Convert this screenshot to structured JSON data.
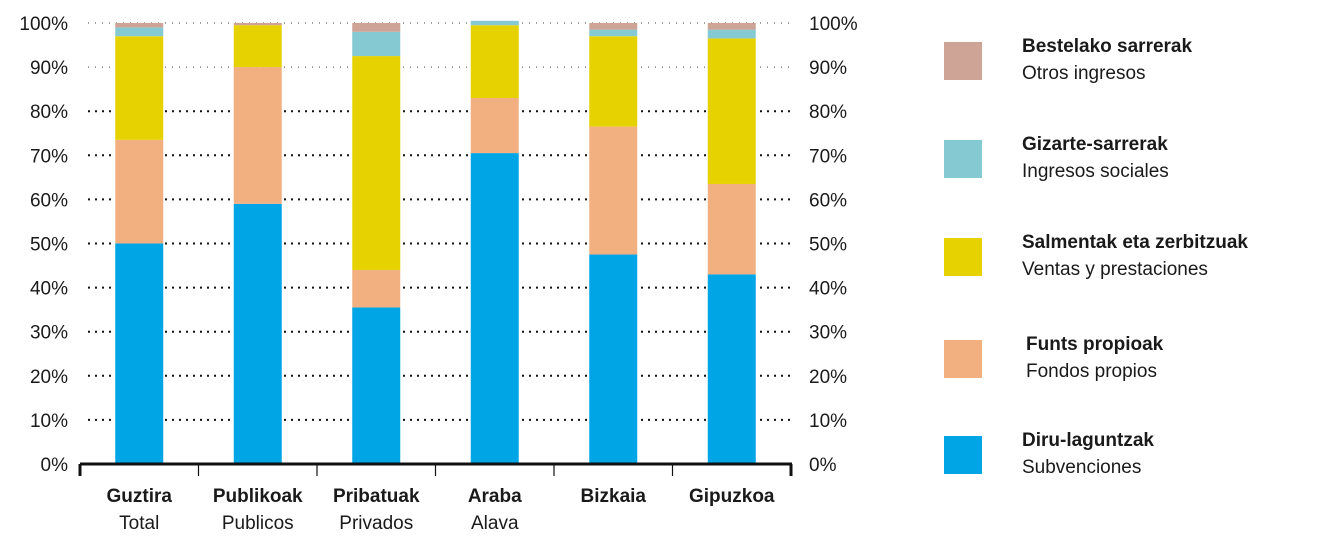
{
  "chart_data": {
    "type": "bar",
    "stacked": true,
    "ylim": [
      0,
      100
    ],
    "y_ticks": [
      "0%",
      "10%",
      "20%",
      "30%",
      "40%",
      "50%",
      "60%",
      "70%",
      "80%",
      "90%",
      "100%"
    ],
    "y_axis_both_sides": true,
    "grid": "dotted horizontal",
    "legend_position": "right",
    "categories": [
      {
        "label": "Guztira",
        "sublabel": "Total"
      },
      {
        "label": "Publikoak",
        "sublabel": "Publicos"
      },
      {
        "label": "Pribatuak",
        "sublabel": "Privados"
      },
      {
        "label": "Araba",
        "sublabel": "Alava"
      },
      {
        "label": "Bizkaia",
        "sublabel": ""
      },
      {
        "label": "Gipuzkoa",
        "sublabel": ""
      }
    ],
    "series": [
      {
        "name": "Diru-laguntzak",
        "subname": "Subvenciones",
        "color": "#00a5e6",
        "values": [
          50,
          59,
          35.5,
          70.5,
          47.5,
          43
        ]
      },
      {
        "name": "Funts propioak",
        "subname": "Fondos propios",
        "color": "#f2b081",
        "values": [
          23.5,
          31,
          8.5,
          12.5,
          29,
          20.5
        ]
      },
      {
        "name": "Salmentak eta zerbitzuak",
        "subname": "Ventas y prestaciones",
        "color": "#e6d200",
        "values": [
          23.5,
          9.5,
          48.5,
          16.5,
          20.5,
          33
        ]
      },
      {
        "name": "Gizarte-sarrerak",
        "subname": "Ingresos sociales",
        "color": "#85c9d3",
        "values": [
          2,
          0,
          5.5,
          1,
          1.5,
          2
        ]
      },
      {
        "name": "Bestelako sarrerak",
        "subname": "Otros ingresos",
        "color": "#cda495",
        "values": [
          1,
          0.5,
          2,
          0,
          1.5,
          1.5
        ]
      }
    ]
  }
}
